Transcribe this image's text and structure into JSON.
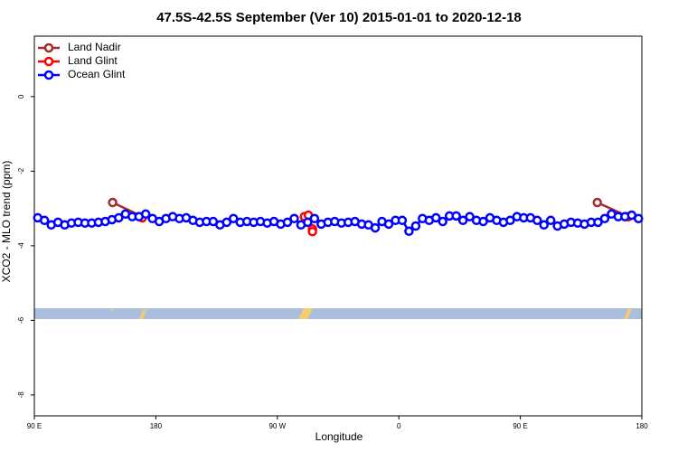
{
  "chart_data": {
    "type": "line",
    "title": "47.5S-42.5S September (Ver 10)   2015-01-01 to 2020-12-18",
    "xlabel": "Longitude",
    "ylabel": "XCO2 - MLO trend (ppm)",
    "xlim": [
      90,
      540
    ],
    "ylim": [
      -8.56,
      1.62
    ],
    "xticks": [
      {
        "value": 90,
        "label": "90 E"
      },
      180,
      {
        "value": 270,
        "label": "90 W"
      },
      {
        "value": 360,
        "label": "0"
      },
      {
        "value": 450,
        "label": "90 E"
      },
      {
        "value": 540,
        "label": "180"
      }
    ],
    "yticks": [
      0,
      -2,
      -4,
      -6,
      -8
    ],
    "legend": "top-left",
    "series": [
      {
        "name": "Land Nadir",
        "color": "#a52a2a",
        "x": [
          148,
          170,
          null,
          507,
          530
        ],
        "values": [
          -2.84,
          -3.22,
          null,
          -2.84,
          -3.22
        ]
      },
      {
        "name": "Land Glint",
        "color": "#ff0000",
        "x": [
          170,
          null,
          290,
          293,
          296,
          296,
          null,
          530
        ],
        "values": [
          -3.25,
          null,
          -3.22,
          -3.18,
          -3.55,
          -3.62,
          null,
          -3.22
        ]
      },
      {
        "name": "Ocean Glint",
        "color": "#0000ff",
        "x": [
          92.5,
          97.5,
          102.5,
          107.5,
          112.5,
          117.5,
          122.5,
          127.5,
          132.5,
          137.5,
          142.5,
          147.5,
          152.5,
          157.5,
          162.5,
          167.5,
          172.5,
          177.5,
          182.5,
          187.5,
          192.5,
          197.5,
          202.5,
          207.5,
          212.5,
          217.5,
          222.5,
          227.5,
          232.5,
          237.5,
          242.5,
          247.5,
          252.5,
          257.5,
          262.5,
          267.5,
          272.5,
          277.5,
          282.5,
          287.5,
          292.5,
          297.5,
          302.5,
          307.5,
          312.5,
          317.5,
          322.5,
          327.5,
          332.5,
          337.5,
          342.5,
          347.5,
          352.5,
          357.5,
          362.5,
          367.5,
          372.5,
          377.5,
          382.5,
          387.5,
          392.5,
          397.5,
          402.5,
          407.5,
          412.5,
          417.5,
          422.5,
          427.5,
          432.5,
          437.5,
          442.5,
          447.5,
          452.5,
          457.5,
          462.5,
          467.5,
          472.5,
          477.5,
          482.5,
          487.5,
          492.5,
          497.5,
          502.5,
          507.5,
          512.5,
          517.5,
          522.5,
          527.5,
          532.5,
          537.5
        ],
        "values": [
          -3.25,
          -3.32,
          -3.44,
          -3.37,
          -3.44,
          -3.39,
          -3.37,
          -3.39,
          -3.39,
          -3.37,
          -3.35,
          -3.3,
          -3.25,
          -3.15,
          -3.22,
          -3.22,
          -3.15,
          -3.27,
          -3.35,
          -3.27,
          -3.22,
          -3.27,
          -3.25,
          -3.32,
          -3.37,
          -3.35,
          -3.35,
          -3.44,
          -3.37,
          -3.27,
          -3.37,
          -3.35,
          -3.37,
          -3.35,
          -3.39,
          -3.35,
          -3.42,
          -3.37,
          -3.27,
          -3.44,
          -3.37,
          -3.27,
          -3.42,
          -3.37,
          -3.35,
          -3.39,
          -3.37,
          -3.35,
          -3.42,
          -3.44,
          -3.52,
          -3.35,
          -3.42,
          -3.32,
          -3.32,
          -3.61,
          -3.47,
          -3.27,
          -3.32,
          -3.25,
          -3.35,
          -3.2,
          -3.2,
          -3.32,
          -3.22,
          -3.32,
          -3.35,
          -3.25,
          -3.32,
          -3.37,
          -3.32,
          -3.22,
          -3.25,
          -3.25,
          -3.32,
          -3.44,
          -3.32,
          -3.47,
          -3.42,
          -3.37,
          -3.39,
          -3.42,
          -3.37,
          -3.37,
          -3.27,
          -3.15,
          -3.22,
          -3.22,
          -3.18,
          -3.27
        ]
      }
    ]
  }
}
